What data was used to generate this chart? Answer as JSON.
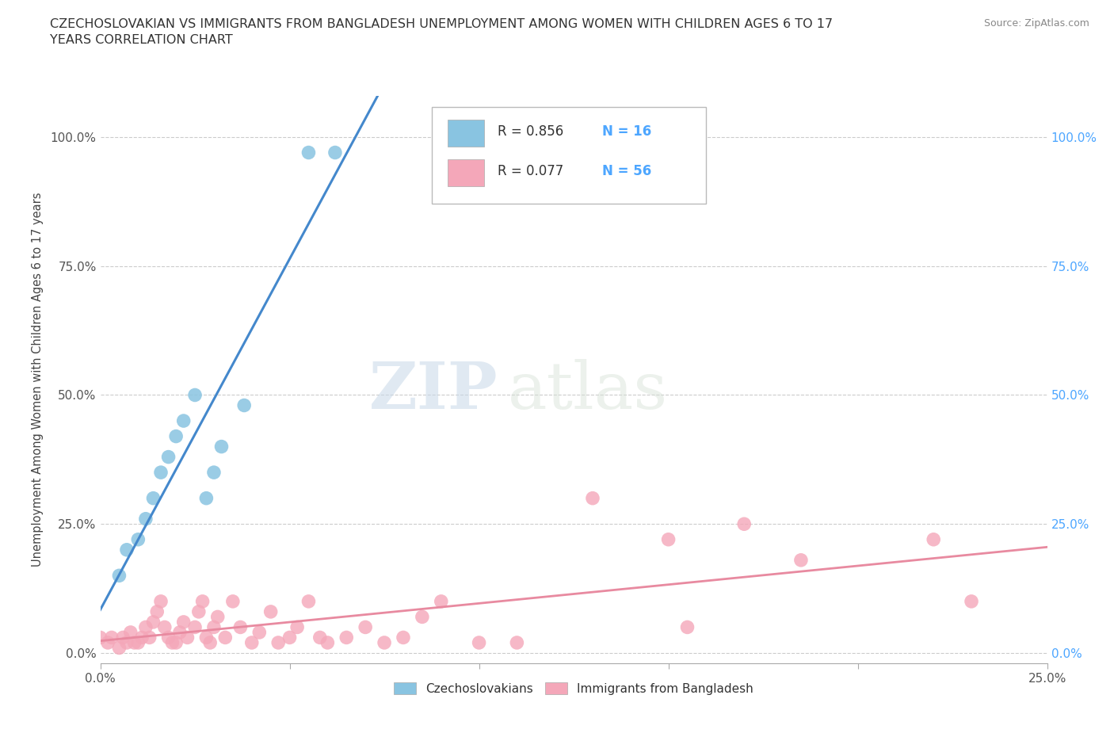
{
  "title": "CZECHOSLOVAKIAN VS IMMIGRANTS FROM BANGLADESH UNEMPLOYMENT AMONG WOMEN WITH CHILDREN AGES 6 TO 17\nYEARS CORRELATION CHART",
  "source": "Source: ZipAtlas.com",
  "ylabel": "Unemployment Among Women with Children Ages 6 to 17 years",
  "xlim": [
    0,
    0.25
  ],
  "ylim": [
    -0.02,
    1.08
  ],
  "yticks": [
    0.0,
    0.25,
    0.5,
    0.75,
    1.0
  ],
  "ytick_labels_left": [
    "0.0%",
    "25.0%",
    "50.0%",
    "75.0%",
    "100.0%"
  ],
  "ytick_labels_right": [
    "0.0%",
    "25.0%",
    "50.0%",
    "75.0%",
    "100.0%"
  ],
  "xticks": [
    0.0,
    0.05,
    0.1,
    0.15,
    0.2,
    0.25
  ],
  "xtick_labels": [
    "0.0%",
    "",
    "",
    "",
    "",
    "25.0%"
  ],
  "color_czech": "#89c4e1",
  "color_bang": "#f4a7b9",
  "line_color_czech": "#4488cc",
  "line_color_bang": "#e88aa0",
  "watermark_zip": "ZIP",
  "watermark_atlas": "atlas",
  "bg_color": "#ffffff",
  "grid_color": "#cccccc",
  "right_tick_color": "#4da6ff",
  "left_tick_color": "#555555",
  "R_czech": "0.856",
  "N_czech": "16",
  "R_bang": "0.077",
  "N_bang": "56",
  "czech_x": [
    0.005,
    0.007,
    0.01,
    0.012,
    0.014,
    0.016,
    0.018,
    0.02,
    0.022,
    0.025,
    0.028,
    0.03,
    0.032,
    0.038,
    0.055,
    0.062
  ],
  "czech_y": [
    0.15,
    0.2,
    0.22,
    0.26,
    0.3,
    0.35,
    0.38,
    0.42,
    0.45,
    0.5,
    0.3,
    0.35,
    0.4,
    0.48,
    0.97,
    0.97
  ],
  "bang_x": [
    0.0,
    0.002,
    0.003,
    0.005,
    0.006,
    0.007,
    0.008,
    0.009,
    0.01,
    0.011,
    0.012,
    0.013,
    0.014,
    0.015,
    0.016,
    0.017,
    0.018,
    0.019,
    0.02,
    0.021,
    0.022,
    0.023,
    0.025,
    0.026,
    0.027,
    0.028,
    0.029,
    0.03,
    0.031,
    0.033,
    0.035,
    0.037,
    0.04,
    0.042,
    0.045,
    0.047,
    0.05,
    0.052,
    0.055,
    0.058,
    0.06,
    0.065,
    0.07,
    0.075,
    0.08,
    0.085,
    0.09,
    0.1,
    0.11,
    0.13,
    0.15,
    0.155,
    0.17,
    0.185,
    0.22,
    0.23
  ],
  "bang_y": [
    0.03,
    0.02,
    0.03,
    0.01,
    0.03,
    0.02,
    0.04,
    0.02,
    0.02,
    0.03,
    0.05,
    0.03,
    0.06,
    0.08,
    0.1,
    0.05,
    0.03,
    0.02,
    0.02,
    0.04,
    0.06,
    0.03,
    0.05,
    0.08,
    0.1,
    0.03,
    0.02,
    0.05,
    0.07,
    0.03,
    0.1,
    0.05,
    0.02,
    0.04,
    0.08,
    0.02,
    0.03,
    0.05,
    0.1,
    0.03,
    0.02,
    0.03,
    0.05,
    0.02,
    0.03,
    0.07,
    0.1,
    0.02,
    0.02,
    0.3,
    0.22,
    0.05,
    0.25,
    0.18,
    0.22,
    0.1
  ]
}
